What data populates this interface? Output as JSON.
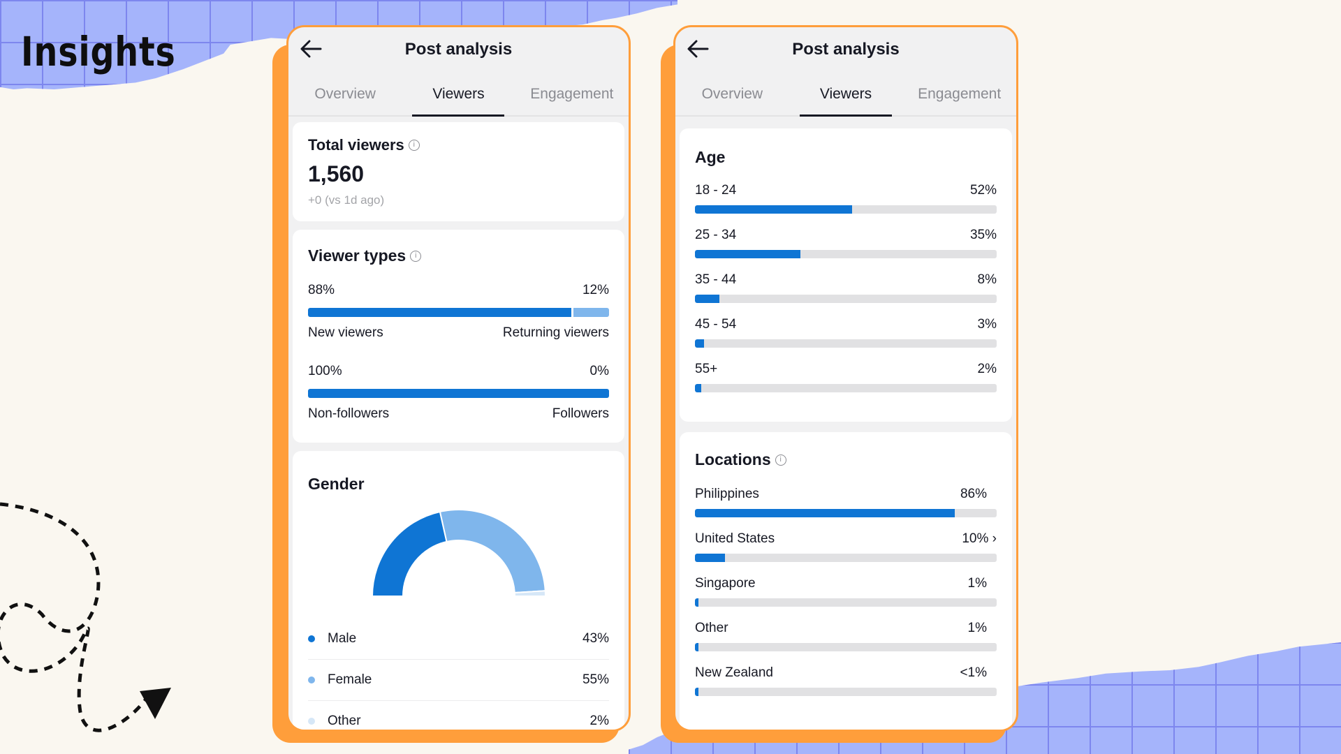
{
  "page": {
    "title": "Insights"
  },
  "colors": {
    "accent": "#0f75d4",
    "accent_light": "#7fb6ec",
    "accent_pale": "#d6e7f7",
    "frame": "#ff9e3b",
    "grid": "#a5b4fb"
  },
  "left": {
    "header": {
      "title": "Post analysis",
      "back_icon": "arrow-left-icon"
    },
    "tabs": [
      "Overview",
      "Viewers",
      "Engagement"
    ],
    "active_tab": "Viewers",
    "total": {
      "label": "Total viewers",
      "value": "1,560",
      "delta": "+0 (vs 1d ago)"
    },
    "viewer_types": {
      "title": "Viewer types",
      "new_returning": {
        "left_pct": "88%",
        "right_pct": "12%",
        "left_label": "New viewers",
        "right_label": "Returning viewers",
        "left_value": 88,
        "right_value": 12
      },
      "followers": {
        "left_pct": "100%",
        "right_pct": "0%",
        "left_label": "Non-followers",
        "right_label": "Followers",
        "left_value": 100,
        "right_value": 0
      }
    },
    "gender": {
      "title": "Gender",
      "items": [
        {
          "label": "Male",
          "pct": "43%",
          "value": 43,
          "color": "#0f75d4"
        },
        {
          "label": "Female",
          "pct": "55%",
          "value": 55,
          "color": "#7fb6ec"
        },
        {
          "label": "Other",
          "pct": "2%",
          "value": 2,
          "color": "#d6e7f7"
        }
      ]
    }
  },
  "right": {
    "header": {
      "title": "Post analysis",
      "back_icon": "arrow-left-icon"
    },
    "tabs": [
      "Overview",
      "Viewers",
      "Engagement"
    ],
    "active_tab": "Viewers",
    "age": {
      "title": "Age",
      "items": [
        {
          "label": "18 - 24",
          "pct": "52%",
          "value": 52
        },
        {
          "label": "25 - 34",
          "pct": "35%",
          "value": 35
        },
        {
          "label": "35 - 44",
          "pct": "8%",
          "value": 8
        },
        {
          "label": "45 - 54",
          "pct": "3%",
          "value": 3
        },
        {
          "label": "55+",
          "pct": "2%",
          "value": 2
        }
      ]
    },
    "locations": {
      "title": "Locations",
      "items": [
        {
          "label": "Philippines",
          "pct": "86%",
          "value": 86
        },
        {
          "label": "United States",
          "pct": "10%",
          "value": 10,
          "chevron": "›"
        },
        {
          "label": "Singapore",
          "pct": "1%",
          "value": 1
        },
        {
          "label": "Other",
          "pct": "1%",
          "value": 1
        },
        {
          "label": "New Zealand",
          "pct": "<1%",
          "value": 0.5
        }
      ]
    }
  }
}
